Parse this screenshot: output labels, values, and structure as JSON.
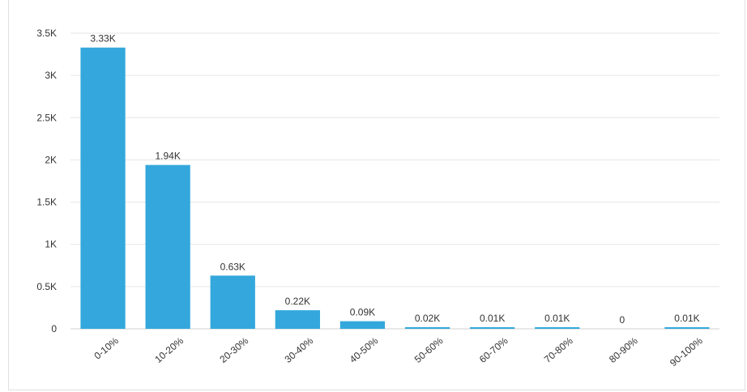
{
  "chart_data": {
    "type": "bar",
    "categories": [
      "0-10%",
      "10-20%",
      "20-30%",
      "30-40%",
      "40-50%",
      "50-60%",
      "60-70%",
      "70-80%",
      "80-90%",
      "90-100%"
    ],
    "values": [
      3330,
      1940,
      630,
      220,
      90,
      20,
      10,
      10,
      0,
      10
    ],
    "data_labels": [
      "3.33K",
      "1.94K",
      "0.63K",
      "0.22K",
      "0.09K",
      "0.02K",
      "0.01K",
      "0.01K",
      "0",
      "0.01K"
    ],
    "yticks": [
      0,
      500,
      1000,
      1500,
      2000,
      2500,
      3000,
      3500
    ],
    "ytick_labels": [
      "0",
      "0.5K",
      "1K",
      "1.5K",
      "2K",
      "2.5K",
      "3K",
      "3.5K"
    ],
    "ylim": [
      0,
      3500
    ],
    "title": "",
    "xlabel": "",
    "ylabel": "",
    "grid": true,
    "bar_color": "#34a8dc"
  }
}
